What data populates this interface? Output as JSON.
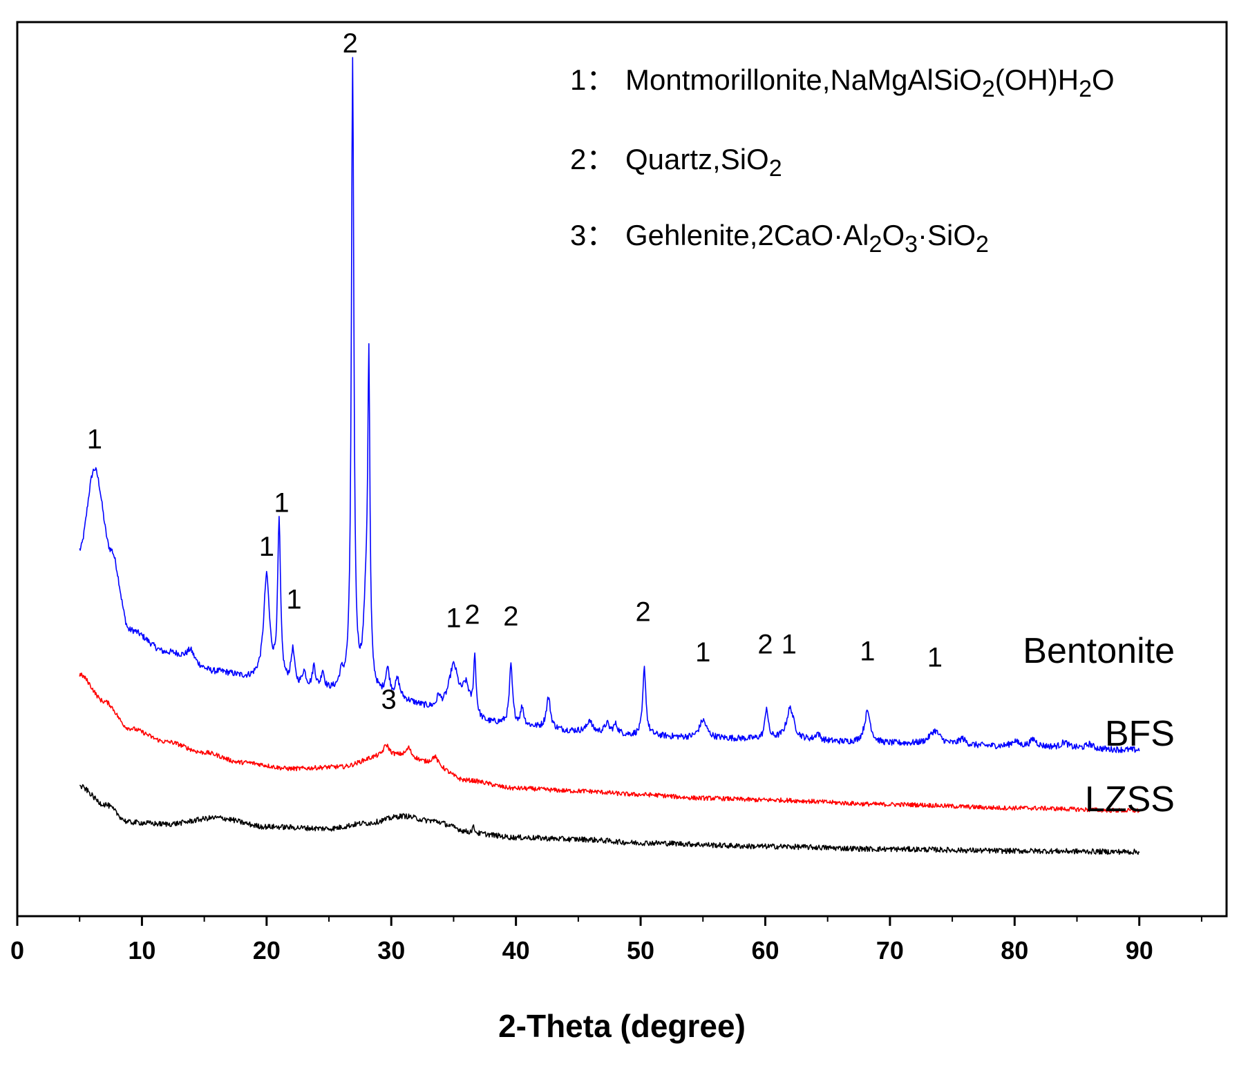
{
  "chart_data": {
    "type": "line",
    "title": "",
    "xlabel": "2-Theta (degree)",
    "ylabel": "",
    "xlim": [
      0,
      97
    ],
    "ylim": [
      0,
      100
    ],
    "x_ticks": [
      0,
      10,
      20,
      30,
      40,
      50,
      60,
      70,
      80,
      90
    ],
    "y_ticks_shown": false,
    "legend": [
      {
        "number": "1：",
        "text": "Montmorillonite,NaMgAlSiO₂(OH)H₂O"
      },
      {
        "number": "2：",
        "text": "Quartz,SiO₂"
      },
      {
        "number": "3：",
        "text": "Gehlenite,2CaO·Al₂O₃·SiO₂"
      }
    ],
    "series": [
      {
        "name": "Bentonite",
        "color": "#0000ff",
        "baseline": [
          [
            5,
            41
          ],
          [
            6.2,
            50
          ],
          [
            7.5,
            41
          ],
          [
            9,
            32
          ],
          [
            12,
            29.5
          ],
          [
            16,
            27.3
          ],
          [
            19,
            26.5
          ],
          [
            23,
            25.2
          ],
          [
            26,
            25
          ],
          [
            30,
            24.2
          ],
          [
            34,
            23
          ],
          [
            38,
            21.5
          ],
          [
            45,
            20.7
          ],
          [
            50,
            20.2
          ],
          [
            55,
            19.9
          ],
          [
            60,
            19.8
          ],
          [
            70,
            19.3
          ],
          [
            80,
            19
          ],
          [
            90,
            18.6
          ]
        ],
        "peaks": [
          {
            "x": 13.9,
            "h": 1.3,
            "w": 0.35
          },
          {
            "x": 20.0,
            "h": 11.5,
            "w": 0.28
          },
          {
            "x": 21.0,
            "h": 17.5,
            "w": 0.14
          },
          {
            "x": 22.1,
            "h": 4.0,
            "w": 0.18
          },
          {
            "x": 23.0,
            "h": 1.8,
            "w": 0.2
          },
          {
            "x": 23.8,
            "h": 2.5,
            "w": 0.15
          },
          {
            "x": 24.5,
            "h": 2.0,
            "w": 0.15
          },
          {
            "x": 26.0,
            "h": 1.5,
            "w": 0.2
          },
          {
            "x": 26.9,
            "h": 70.0,
            "w": 0.12
          },
          {
            "x": 28.0,
            "h": 10.0,
            "w": 0.25
          },
          {
            "x": 28.2,
            "h": 32.5,
            "w": 0.1
          },
          {
            "x": 29.7,
            "h": 3.0,
            "w": 0.2
          },
          {
            "x": 30.5,
            "h": 2.0,
            "w": 0.2
          },
          {
            "x": 33.8,
            "h": 1.2,
            "w": 0.15
          },
          {
            "x": 35.0,
            "h": 5.0,
            "w": 0.45
          },
          {
            "x": 36.0,
            "h": 3.0,
            "w": 0.35
          },
          {
            "x": 36.7,
            "h": 6.5,
            "w": 0.12
          },
          {
            "x": 39.6,
            "h": 6.5,
            "w": 0.15
          },
          {
            "x": 40.5,
            "h": 2.0,
            "w": 0.15
          },
          {
            "x": 42.6,
            "h": 3.5,
            "w": 0.2
          },
          {
            "x": 45.9,
            "h": 1.3,
            "w": 0.2
          },
          {
            "x": 47.3,
            "h": 1.0,
            "w": 0.2
          },
          {
            "x": 48.0,
            "h": 1.0,
            "w": 0.2
          },
          {
            "x": 50.3,
            "h": 7.5,
            "w": 0.15
          },
          {
            "x": 55.0,
            "h": 2.0,
            "w": 0.35
          },
          {
            "x": 60.1,
            "h": 3.5,
            "w": 0.15
          },
          {
            "x": 62.0,
            "h": 3.5,
            "w": 0.35
          },
          {
            "x": 64.2,
            "h": 0.8,
            "w": 0.2
          },
          {
            "x": 68.2,
            "h": 3.5,
            "w": 0.3
          },
          {
            "x": 73.6,
            "h": 1.5,
            "w": 0.5
          },
          {
            "x": 75.8,
            "h": 0.7,
            "w": 0.3
          },
          {
            "x": 80.0,
            "h": 0.6,
            "w": 0.3
          },
          {
            "x": 81.5,
            "h": 0.8,
            "w": 0.3
          },
          {
            "x": 84.0,
            "h": 0.6,
            "w": 0.3
          },
          {
            "x": 86.0,
            "h": 0.5,
            "w": 0.3
          }
        ],
        "noise": 0.35
      },
      {
        "name": "BFS",
        "color": "#ff0000",
        "baseline": [
          [
            5,
            27
          ],
          [
            7,
            24
          ],
          [
            9,
            21
          ],
          [
            12,
            19.5
          ],
          [
            15,
            18.3
          ],
          [
            18,
            17.2
          ],
          [
            22,
            16.5
          ],
          [
            26,
            16.7
          ],
          [
            29,
            17.8
          ],
          [
            31,
            18
          ],
          [
            33,
            17.2
          ],
          [
            36,
            15.2
          ],
          [
            40,
            14.3
          ],
          [
            45,
            14
          ],
          [
            50,
            13.6
          ],
          [
            55,
            13.2
          ],
          [
            60,
            13
          ],
          [
            70,
            12.5
          ],
          [
            80,
            12.1
          ],
          [
            90,
            11.8
          ]
        ],
        "peaks": [
          {
            "x": 29.6,
            "h": 1.3,
            "w": 0.3
          },
          {
            "x": 31.4,
            "h": 0.9,
            "w": 0.2
          },
          {
            "x": 33.5,
            "h": 0.8,
            "w": 0.25
          }
        ],
        "noise": 0.25
      },
      {
        "name": "LZSS",
        "color": "#000000",
        "baseline": [
          [
            5,
            14.5
          ],
          [
            7,
            12.5
          ],
          [
            9,
            10.5
          ],
          [
            12,
            10.3
          ],
          [
            16,
            11
          ],
          [
            20,
            10
          ],
          [
            25,
            9.8
          ],
          [
            28,
            10.4
          ],
          [
            31,
            11.2
          ],
          [
            33,
            10.7
          ],
          [
            37,
            9.2
          ],
          [
            40,
            8.8
          ],
          [
            45,
            8.6
          ],
          [
            50,
            8.2
          ],
          [
            60,
            7.8
          ],
          [
            70,
            7.5
          ],
          [
            80,
            7.3
          ],
          [
            90,
            7.2
          ]
        ],
        "peaks": [
          {
            "x": 36.6,
            "h": 0.7,
            "w": 0.15
          }
        ],
        "noise": 0.3
      }
    ],
    "peak_labels": [
      {
        "text": "1",
        "x": 6.2,
        "y": 52.3
      },
      {
        "text": "1",
        "x": 20.0,
        "y": 40.3
      },
      {
        "text": "1",
        "x": 21.2,
        "y": 45.2
      },
      {
        "text": "1",
        "x": 22.2,
        "y": 34.4
      },
      {
        "text": "2",
        "x": 26.7,
        "y": 96.6
      },
      {
        "text": "1",
        "x": 35.0,
        "y": 32.3
      },
      {
        "text": "2",
        "x": 36.5,
        "y": 32.7
      },
      {
        "text": "2",
        "x": 39.6,
        "y": 32.5
      },
      {
        "text": "2",
        "x": 50.2,
        "y": 33.0
      },
      {
        "text": "1",
        "x": 55.0,
        "y": 28.5
      },
      {
        "text": "2",
        "x": 60.0,
        "y": 29.4
      },
      {
        "text": "1",
        "x": 61.9,
        "y": 29.4
      },
      {
        "text": "1",
        "x": 68.2,
        "y": 28.6
      },
      {
        "text": "1",
        "x": 73.6,
        "y": 27.9
      },
      {
        "text": "3",
        "x": 29.8,
        "y": 23.2
      }
    ]
  }
}
